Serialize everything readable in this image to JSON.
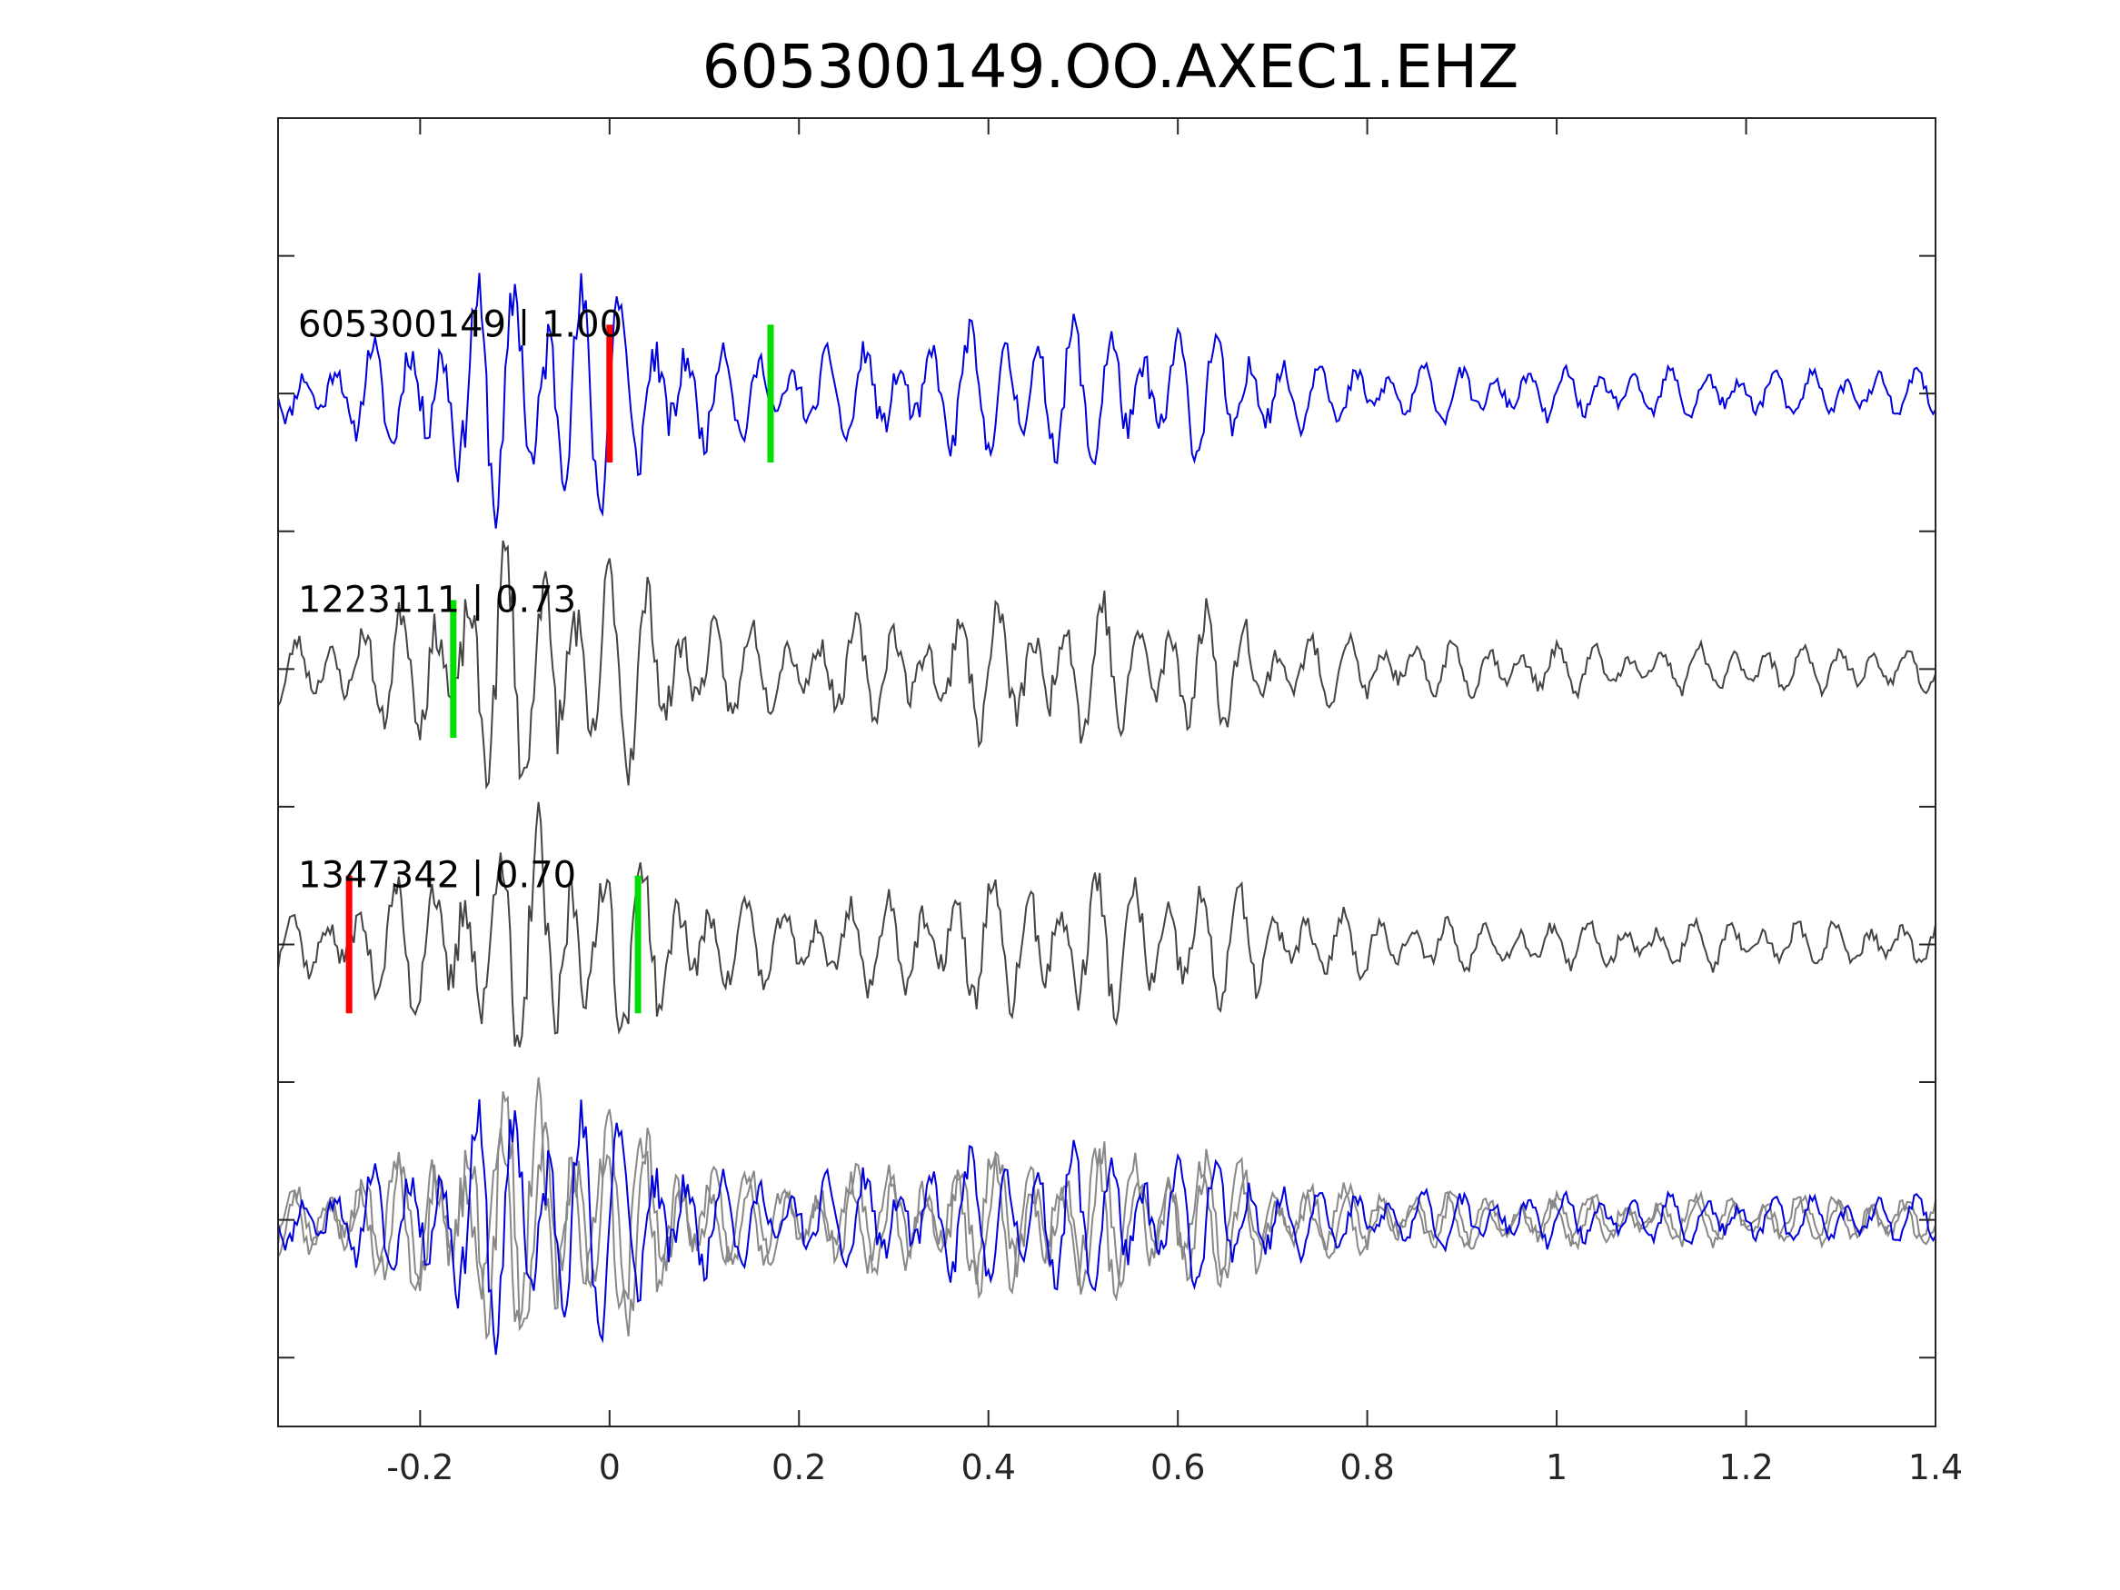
{
  "chart_data": {
    "type": "line",
    "title": "605300149.OO.AXEC1.EHZ",
    "xlabel": "",
    "ylabel": "",
    "xlim": [
      -0.35,
      1.4
    ],
    "ylim": [
      0.5,
      10
    ],
    "xticks": [
      -0.2,
      0,
      0.2,
      0.4,
      0.6,
      0.8,
      1,
      1.2,
      1.4
    ],
    "xtick_labels": [
      "-0.2",
      "0",
      "0.2",
      "0.4",
      "0.6",
      "0.8",
      "1",
      "1.2",
      "1.4"
    ],
    "yticks": [
      1,
      2,
      3,
      4,
      5,
      6,
      7,
      8,
      9
    ],
    "ytick_labels": [],
    "grid": false,
    "colors": {
      "master": "#0000dd",
      "neighbor": "#444444",
      "overlay": "#888888",
      "p_pick": "#ff0000",
      "s_pick": "#00dd00"
    },
    "traces": [
      {
        "label": "605300149 | 1.00",
        "baseline": 8,
        "color": "master",
        "p_pick": 0.0,
        "s_pick": 0.17,
        "seed": 11,
        "phase": 0.0
      },
      {
        "label": "1223111 | 0.73",
        "baseline": 6,
        "color": "neighbor",
        "p_pick": null,
        "s_pick": -0.165,
        "seed": 23,
        "phase": 1.3
      },
      {
        "label": "1347342 | 0.70",
        "baseline": 4,
        "color": "neighbor",
        "p_pick": -0.275,
        "s_pick": 0.03,
        "seed": 37,
        "phase": 2.1
      }
    ],
    "overlay_baseline": 2
  }
}
